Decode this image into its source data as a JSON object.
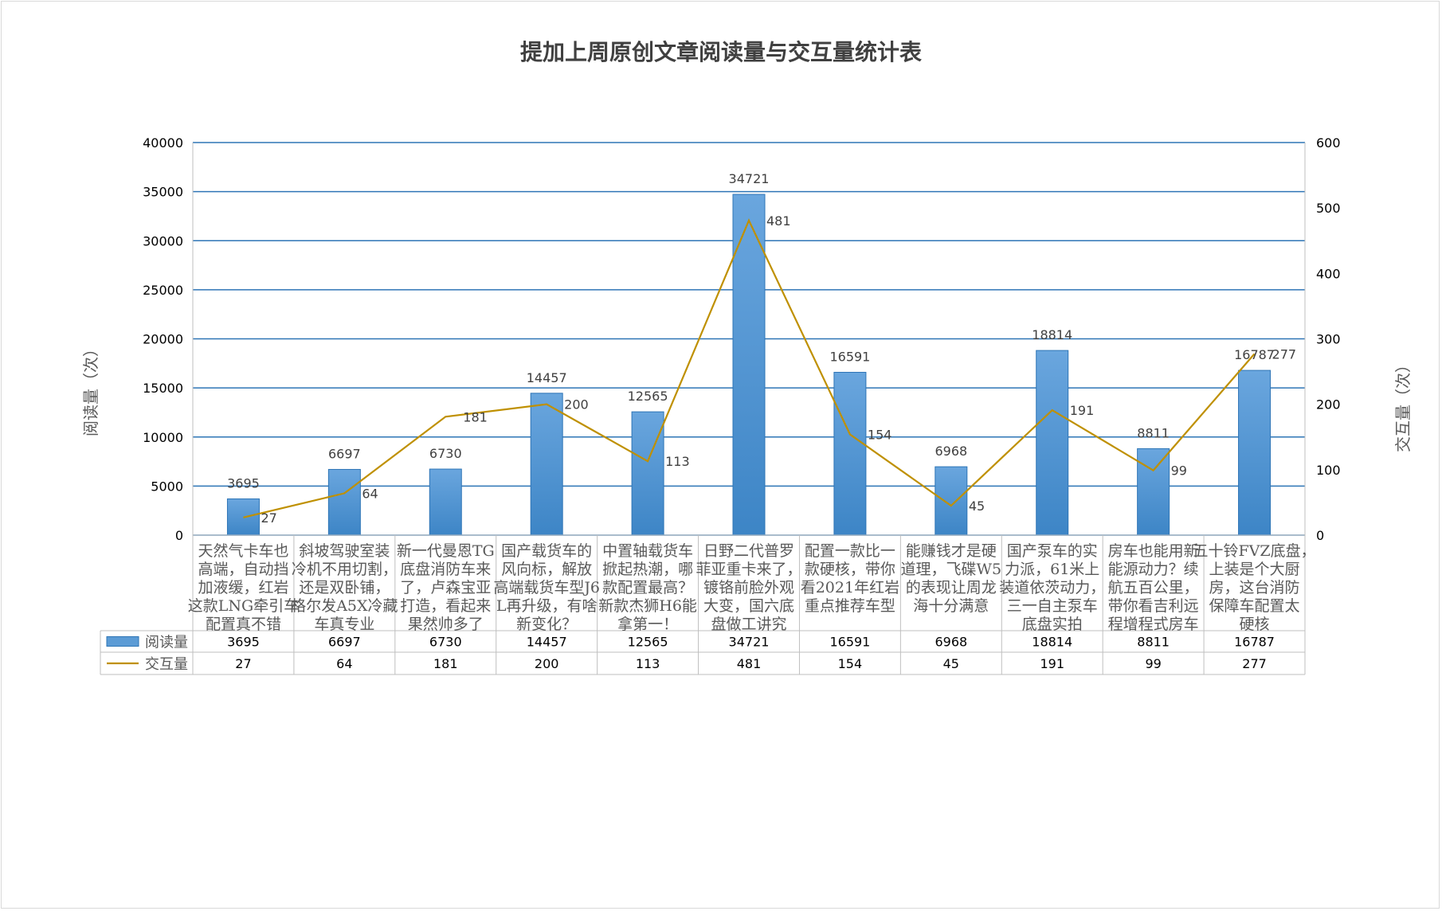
{
  "chart_data": {
    "type": "bar",
    "title": "提加上周原创文章阅读量与交互量统计表",
    "ylabel": "阅读量（次）",
    "y2label": "交互量（次）",
    "ylim": [
      0,
      40000
    ],
    "y2lim": [
      0,
      600
    ],
    "yticks": [
      "0",
      "5000",
      "10000",
      "15000",
      "20000",
      "25000",
      "30000",
      "35000",
      "40000"
    ],
    "y2ticks": [
      "0",
      "100",
      "200",
      "300",
      "400",
      "500",
      "600"
    ],
    "grid": true,
    "legend": "data-table",
    "categories": [
      [
        "天然气卡车也",
        "高端，自动挡",
        "加液缓，红岩",
        "这款LNG牵引车",
        "配置真不错"
      ],
      [
        "斜坡驾驶室装",
        "冷机不用切割，",
        "还是双卧铺，",
        "格尔发A5X冷藏",
        "车真专业"
      ],
      [
        "新一代曼恩TG",
        "底盘消防车来",
        "了，卢森宝亚",
        "打造，看起来",
        "果然帅多了"
      ],
      [
        "国产载货车的",
        "风向标，解放",
        "高端载货车型J6",
        "L再升级，有啥",
        "新变化？"
      ],
      [
        "中置轴载货车",
        "掀起热潮，哪",
        "款配置最高？",
        "新款杰狮H6能",
        "拿第一！"
      ],
      [
        "日野二代普罗",
        "菲亚重卡来了，",
        "镀铬前脸外观",
        "大变，国六底",
        "盘做工讲究"
      ],
      [
        "配置一款比一",
        "款硬核，带你",
        "看2021年红岩",
        "重点推荐车型"
      ],
      [
        "能赚钱才是硬",
        "道理，飞碟W5",
        "的表现让周龙",
        "海十分满意"
      ],
      [
        "国产泵车的实",
        "力派，61米上",
        "装道依茨动力，",
        "三一自主泵车",
        "底盘实拍"
      ],
      [
        "房车也能用新",
        "能源动力？续",
        "航五百公里，",
        "带你看吉利远",
        "程增程式房车"
      ],
      [
        "五十铃FVZ底盘，",
        "上装是个大厨",
        "房，这台消防",
        "保障车配置太",
        "硬核"
      ]
    ],
    "series": [
      {
        "name": "阅读量",
        "type": "bar",
        "axis": "left",
        "color": "#5b9bd5",
        "values": [
          3695,
          6697,
          6730,
          14457,
          12565,
          34721,
          16591,
          6968,
          18814,
          8811,
          16787
        ]
      },
      {
        "name": "交互量",
        "type": "line",
        "axis": "right",
        "color": "#bf9000",
        "values": [
          27,
          64,
          181,
          200,
          113,
          481,
          154,
          45,
          191,
          99,
          277
        ]
      }
    ]
  }
}
